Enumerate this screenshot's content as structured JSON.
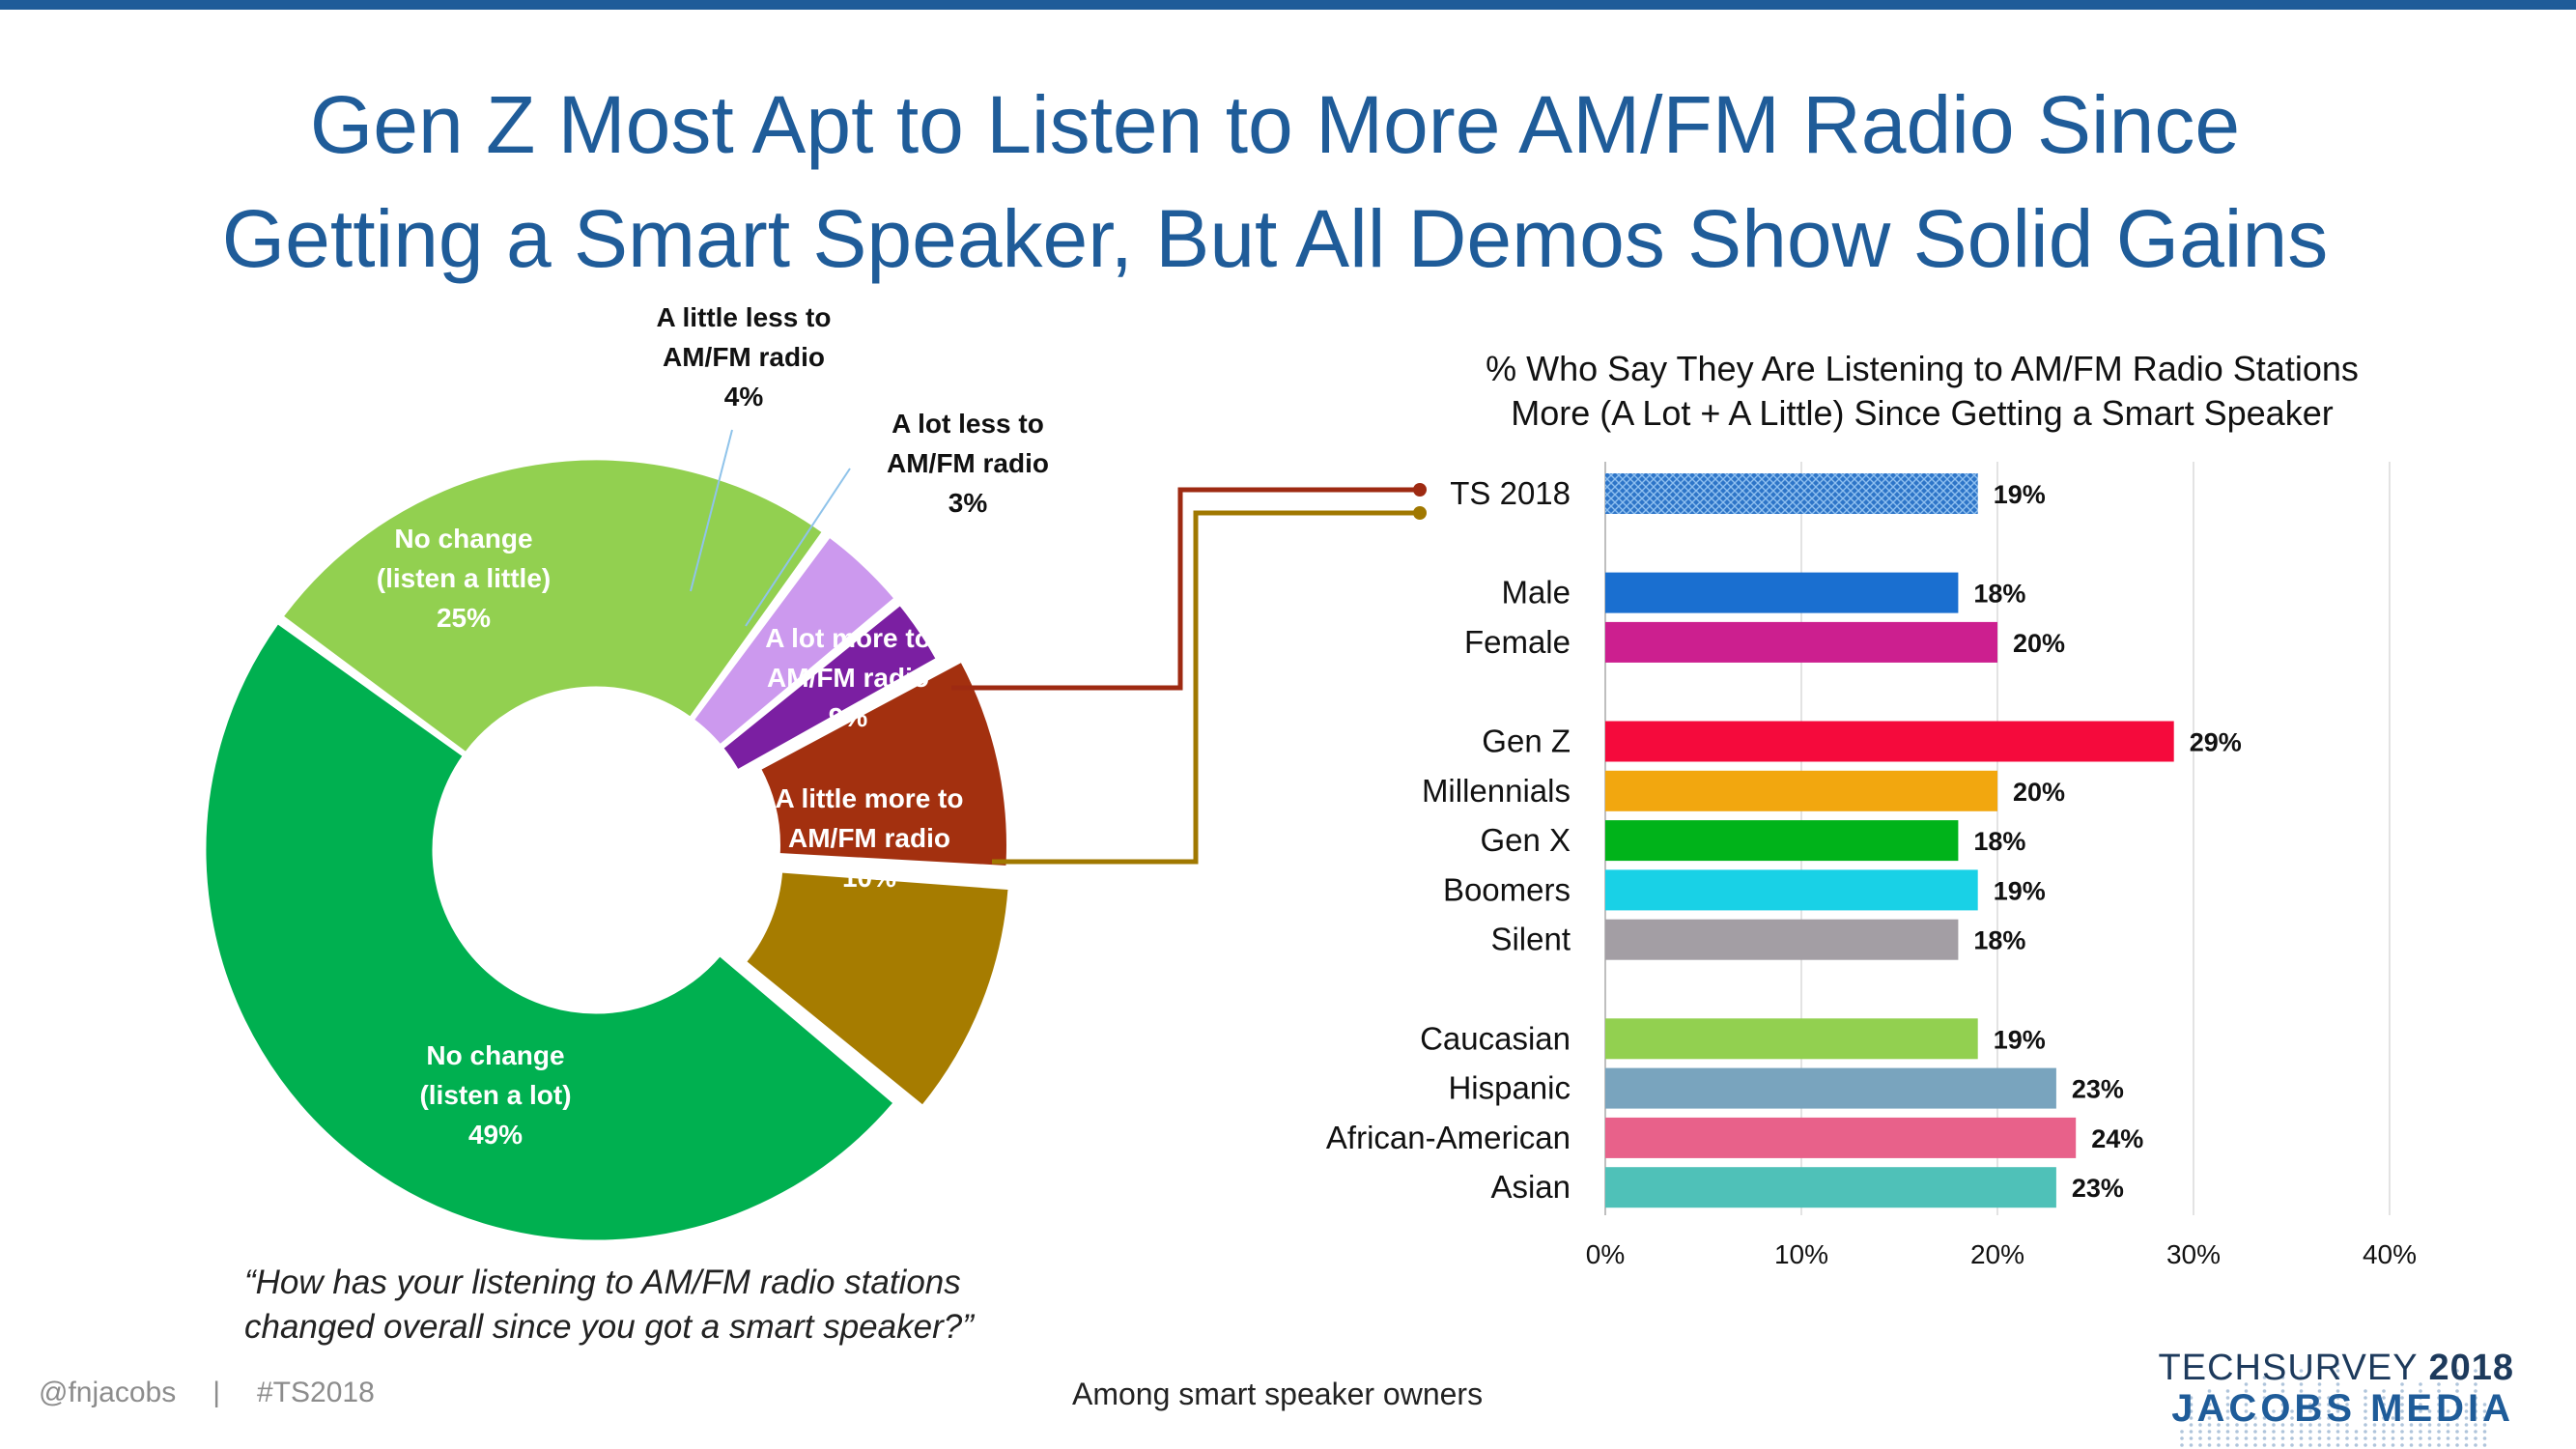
{
  "title": {
    "line1": "Gen Z Most Apt to Listen to More AM/FM Radio Since",
    "line2": "Getting a Smart Speaker, But All Demos Show Solid Gains"
  },
  "colors": {
    "brand": "#1f5c99",
    "connector_a_lot_more": "#9e2a12",
    "connector_a_little_more": "#a07800"
  },
  "chart_data": [
    {
      "type": "pie",
      "donut": true,
      "slices": [
        {
          "label_lines": [
            "A lot more to",
            "AM/FM radio"
          ],
          "value": 9,
          "pct_text": "9%",
          "color": "#a3300f"
        },
        {
          "label_lines": [
            "A little more to",
            "AM/FM radio"
          ],
          "value": 10,
          "pct_text": "10%",
          "color": "#a67c00"
        },
        {
          "label_lines": [
            "No change",
            "(listen a lot)"
          ],
          "value": 49,
          "pct_text": "49%",
          "color": "#00b050"
        },
        {
          "label_lines": [
            "No change",
            "(listen a little)"
          ],
          "value": 25,
          "pct_text": "25%",
          "color": "#92d050"
        },
        {
          "label_lines": [
            "A little less to",
            "AM/FM radio"
          ],
          "value": 4,
          "pct_text": "4%",
          "color": "#cc99ee"
        },
        {
          "label_lines": [
            "A lot less to",
            "AM/FM radio"
          ],
          "value": 3,
          "pct_text": "3%",
          "color": "#7b1fa2"
        }
      ]
    },
    {
      "type": "bar",
      "orientation": "horizontal",
      "title_lines": [
        "% Who Say They Are Listening to AM/FM Radio Stations",
        "More (A Lot + A Little) Since Getting a Smart Speaker"
      ],
      "xlim": [
        0,
        40
      ],
      "ticks": [
        0,
        10,
        20,
        30,
        40
      ],
      "tick_labels": [
        "0%",
        "10%",
        "20%",
        "30%",
        "40%"
      ],
      "grid": true,
      "groups": [
        {
          "bars": [
            {
              "label": "TS 2018",
              "value": 19,
              "value_text": "19%",
              "color": "#2e75c8",
              "pattern": true
            }
          ]
        },
        {
          "bars": [
            {
              "label": "Male",
              "value": 18,
              "value_text": "18%",
              "color": "#1a6fd0"
            },
            {
              "label": "Female",
              "value": 20,
              "value_text": "20%",
              "color": "#cc1f8f"
            }
          ]
        },
        {
          "bars": [
            {
              "label": "Gen Z",
              "value": 29,
              "value_text": "29%",
              "color": "#f50a3c"
            },
            {
              "label": "Millennials",
              "value": 20,
              "value_text": "20%",
              "color": "#f2a70f"
            },
            {
              "label": "Gen X",
              "value": 18,
              "value_text": "18%",
              "color": "#00b31a"
            },
            {
              "label": "Boomers",
              "value": 19,
              "value_text": "19%",
              "color": "#19d1e6"
            },
            {
              "label": "Silent",
              "value": 18,
              "value_text": "18%",
              "color": "#a39ea4"
            }
          ]
        },
        {
          "bars": [
            {
              "label": "Caucasian",
              "value": 19,
              "value_text": "19%",
              "color": "#92d050"
            },
            {
              "label": "Hispanic",
              "value": 23,
              "value_text": "23%",
              "color": "#79a4be"
            },
            {
              "label": "African-American",
              "value": 24,
              "value_text": "24%",
              "color": "#e8618a"
            },
            {
              "label": "Asian",
              "value": 23,
              "value_text": "23%",
              "color": "#4fc1b8"
            }
          ]
        }
      ]
    }
  ],
  "question": {
    "line1": "“How has your listening to AM/FM radio stations",
    "line2": "changed overall since you got a smart speaker?”"
  },
  "footer": {
    "handle": "@fnjacobs",
    "separator": "|",
    "hashtag": "#TS2018",
    "note": "Among smart speaker owners"
  },
  "logo": {
    "line1_prefix": "TECHSURVEY",
    "line1_year": "2018",
    "line2": "JACOBS MEDIA"
  }
}
